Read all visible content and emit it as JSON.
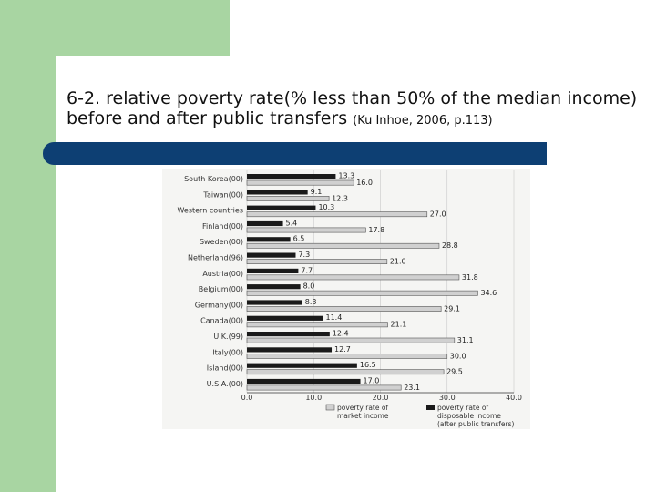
{
  "slide": {
    "title": "6-2. relative poverty rate(% less than 50% of the median income) before and after public transfers",
    "citation": "(Ku Inhoe, 2006, p.113)"
  },
  "colors": {
    "green": "#a8d5a2",
    "navy": "#0d3f73",
    "market_bar": "#d0d0d0",
    "disposable_bar": "#1a1a1a"
  },
  "chart_data": {
    "type": "bar",
    "orientation": "horizontal",
    "categories": [
      "South Korea(00)",
      "Taiwan(00)",
      "Western countries",
      "Finland(00)",
      "Sweden(00)",
      "Netherland(96)",
      "Austria(00)",
      "Belgium(00)",
      "Germany(00)",
      "Canada(00)",
      "U.K.(99)",
      "Italy(00)",
      "Island(00)",
      "U.S.A.(00)"
    ],
    "series": [
      {
        "name": "poverty rate of disposable income (after public transfers)",
        "values": [
          13.3,
          9.1,
          10.3,
          5.4,
          6.5,
          7.3,
          7.7,
          8.0,
          8.3,
          11.4,
          12.4,
          12.7,
          16.5,
          17.0
        ]
      },
      {
        "name": "poverty rate of market income",
        "values": [
          16.0,
          12.3,
          27.0,
          17.8,
          28.8,
          21.0,
          31.8,
          34.6,
          29.1,
          21.1,
          31.1,
          30.0,
          29.5,
          23.1
        ]
      }
    ],
    "disposable_labels": [
      "13.3",
      "9.1",
      "10.3",
      "5.4",
      "6.5",
      "7.3",
      "7.7",
      "8.0",
      "8.3",
      "11.4",
      "12.4",
      "12.7",
      "16.5",
      "17.0"
    ],
    "market_labels": [
      "16.0",
      "12.3",
      "27.0",
      "17.8",
      "28.8",
      "21.0",
      "31.8",
      "34.6",
      "29.1",
      "21.1",
      "31.1",
      "30.0",
      "29.5",
      "23.1"
    ],
    "xlim": [
      0,
      40
    ],
    "xticks": [
      "0.0",
      "10.0",
      "20.0",
      "30.0",
      "40.0"
    ],
    "legend": {
      "market": [
        "poverty rate of",
        "market income"
      ],
      "disposable": [
        "poverty rate of",
        "disposable income",
        "(after public transfers)"
      ]
    },
    "legend_position": "bottom"
  }
}
